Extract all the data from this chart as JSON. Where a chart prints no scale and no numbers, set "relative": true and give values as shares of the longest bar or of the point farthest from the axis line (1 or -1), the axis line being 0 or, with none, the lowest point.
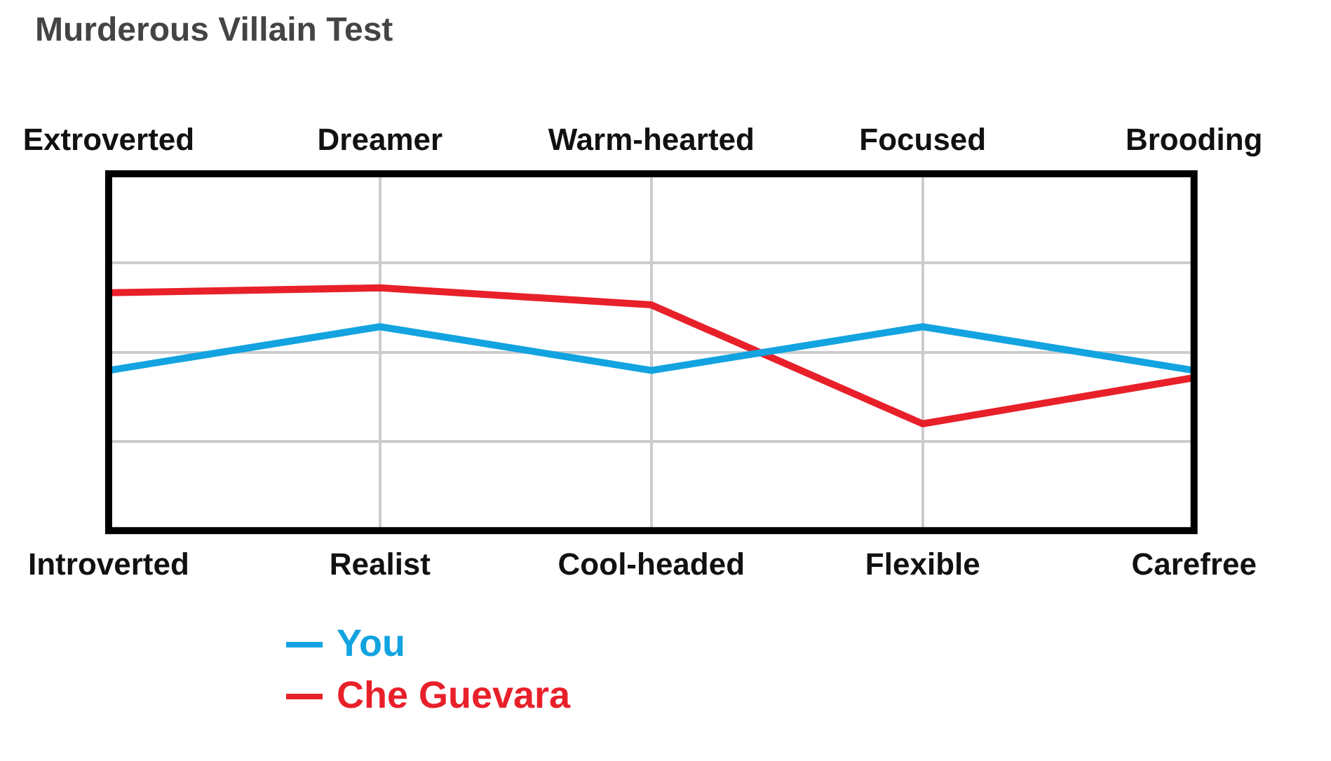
{
  "chart_data": {
    "type": "line",
    "title": "Murderous Villain Test",
    "relative": true,
    "grid": true,
    "legend": "bottom",
    "categories": [
      "Introverted",
      "Realist",
      "Cool-headed",
      "Flexible",
      "Carefree"
    ],
    "annotations": [
      "Extroverted",
      "Dreamer",
      "Warm-hearted",
      "Focused",
      "Brooding"
    ],
    "marker": "none",
    "series": [
      {
        "name": "You",
        "color": "#12a3e0",
        "values": [
          0.66,
          0.84,
          0.66,
          0.84,
          0.66
        ]
      },
      {
        "name": "Che Guevara",
        "color": "#e8202a",
        "values": [
          0.98,
          1,
          0.93,
          0.44,
          0.63
        ]
      }
    ]
  }
}
